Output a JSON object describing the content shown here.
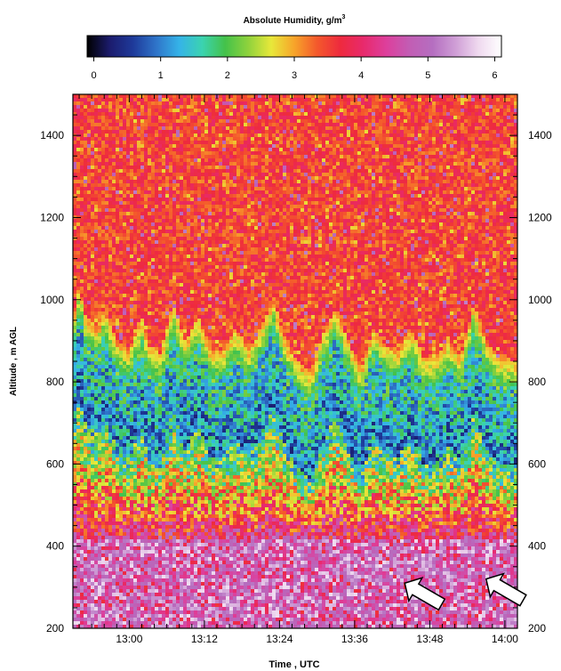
{
  "chart_data": {
    "type": "heatmap",
    "title": "Absolute Humidity, g/m",
    "title_superscript": "3",
    "colorbar": {
      "range": [
        -0.1,
        6.1
      ],
      "ticks": [
        "0",
        "1",
        "2",
        "3",
        "4",
        "5",
        "6"
      ],
      "tick_values": [
        0,
        1,
        2,
        3,
        4,
        5,
        6
      ],
      "stops": [
        "#000000",
        "#1c1c6e",
        "#1e3a9a",
        "#2f74c9",
        "#35b3e8",
        "#3bd3b0",
        "#44c24a",
        "#8fd23c",
        "#e8e83a",
        "#f7a42a",
        "#f4582c",
        "#ee2a3e",
        "#e82a6c",
        "#dd3f9c",
        "#c25db4",
        "#b56ec0",
        "#cf9ed6",
        "#efd9ef",
        "#ffffff"
      ]
    },
    "xlabel": "Time , UTC",
    "ylabel": "Altitude , m AGL",
    "xlim": [
      "12:51",
      "14:02"
    ],
    "x_ticks": [
      "13:00",
      "13:12",
      "13:24",
      "13:36",
      "13:48",
      "14:00"
    ],
    "ylim": [
      200,
      1500
    ],
    "y_ticks": [
      "200",
      "400",
      "600",
      "800",
      "1000",
      "1200",
      "1400"
    ],
    "boundary_layer_top_m": [
      {
        "t": "12:51",
        "z": 940
      },
      {
        "t": "12:52",
        "z": 1040
      },
      {
        "t": "12:53",
        "z": 960
      },
      {
        "t": "12:55",
        "z": 930
      },
      {
        "t": "12:56",
        "z": 980
      },
      {
        "t": "12:58",
        "z": 900
      },
      {
        "t": "13:00",
        "z": 880
      },
      {
        "t": "13:02",
        "z": 960
      },
      {
        "t": "13:03",
        "z": 890
      },
      {
        "t": "13:05",
        "z": 870
      },
      {
        "t": "13:07",
        "z": 990
      },
      {
        "t": "13:09",
        "z": 900
      },
      {
        "t": "13:11",
        "z": 960
      },
      {
        "t": "13:13",
        "z": 880
      },
      {
        "t": "13:15",
        "z": 880
      },
      {
        "t": "13:17",
        "z": 930
      },
      {
        "t": "13:19",
        "z": 880
      },
      {
        "t": "13:21",
        "z": 930
      },
      {
        "t": "13:23",
        "z": 1000
      },
      {
        "t": "13:25",
        "z": 900
      },
      {
        "t": "13:27",
        "z": 850
      },
      {
        "t": "13:29",
        "z": 820
      },
      {
        "t": "13:31",
        "z": 920
      },
      {
        "t": "13:33",
        "z": 980
      },
      {
        "t": "13:35",
        "z": 900
      },
      {
        "t": "13:37",
        "z": 830
      },
      {
        "t": "13:39",
        "z": 930
      },
      {
        "t": "13:41",
        "z": 890
      },
      {
        "t": "13:43",
        "z": 880
      },
      {
        "t": "13:45",
        "z": 930
      },
      {
        "t": "13:47",
        "z": 860
      },
      {
        "t": "13:49",
        "z": 860
      },
      {
        "t": "13:51",
        "z": 900
      },
      {
        "t": "13:53",
        "z": 860
      },
      {
        "t": "13:55",
        "z": 990
      },
      {
        "t": "13:57",
        "z": 900
      },
      {
        "t": "13:59",
        "z": 860
      },
      {
        "t": "14:02",
        "z": 850
      }
    ],
    "annotations": [
      {
        "type": "arrow",
        "target": {
          "t": "13:44",
          "z": 310
        }
      },
      {
        "type": "arrow",
        "target": {
          "t": "13:57",
          "z": 320
        }
      }
    ]
  }
}
